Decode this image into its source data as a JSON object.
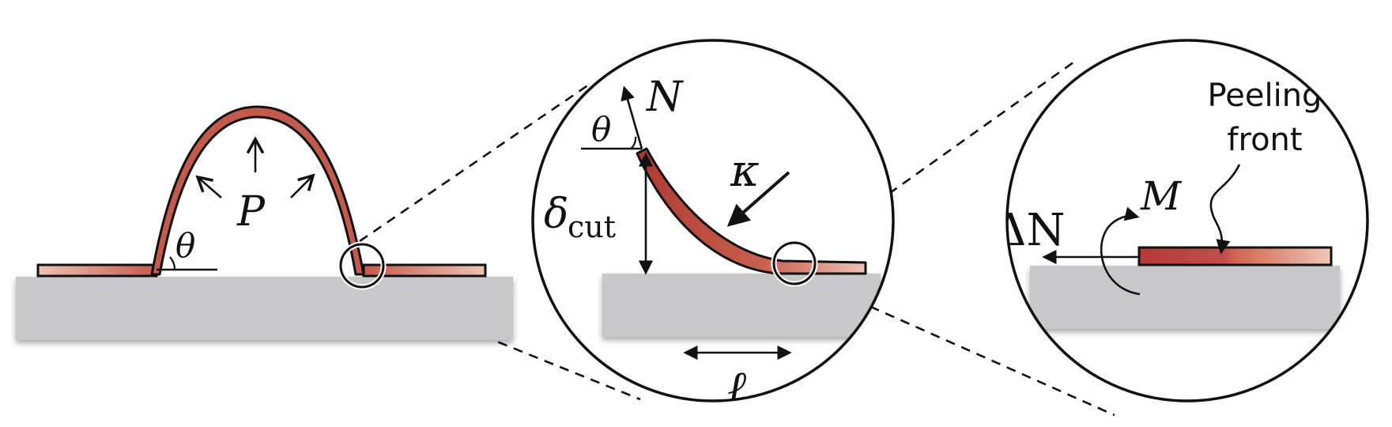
{
  "labels": {
    "pressure": "P",
    "angle": "θ",
    "angle_zoom": "θ",
    "normal_force": "N",
    "curvature": "κ",
    "delta": "δ",
    "delta_sub": "cut",
    "length": "ℓ",
    "length_sub": "∗",
    "delta_n": "ΔN",
    "moment": "M",
    "peeling_line1": "Peeling",
    "peeling_line2": "front"
  },
  "colors": {
    "film_dark": "#b5443a",
    "film_light": "#ecc3b5",
    "substrate": "#c8c7c9",
    "stroke": "#111111"
  }
}
